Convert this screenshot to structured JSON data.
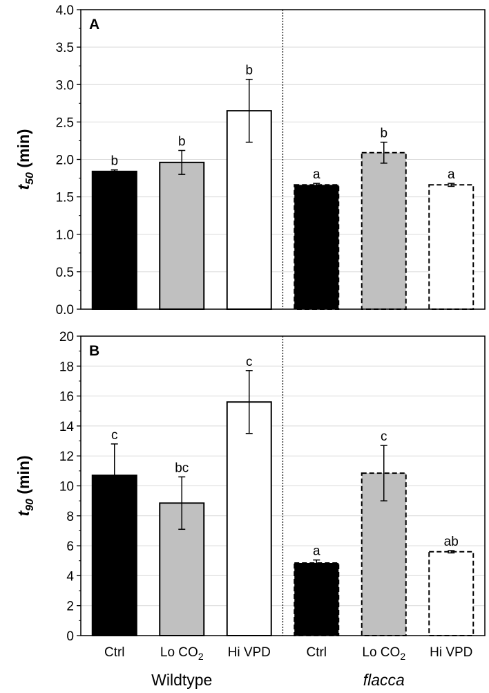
{
  "chart_data": [
    {
      "type": "bar",
      "panel_label": "A",
      "ylabel": {
        "var": "t",
        "sub": "50",
        "unit": " (min)"
      },
      "ylim": [
        0,
        4.0
      ],
      "ytick_labels": [
        "0.0",
        "0.5",
        "1.0",
        "1.5",
        "2.0",
        "2.5",
        "3.0",
        "3.5",
        "4.0"
      ],
      "grid": true,
      "series": [
        {
          "group": "Wildtype",
          "condition": "Ctrl",
          "value": 1.84,
          "error": 0.02,
          "sig": "b",
          "fill": "#000000",
          "dashed": false
        },
        {
          "group": "Wildtype",
          "condition": "Lo CO2",
          "value": 1.96,
          "error": 0.16,
          "sig": "b",
          "fill": "#c0c0c0",
          "dashed": false
        },
        {
          "group": "Wildtype",
          "condition": "Hi VPD",
          "value": 2.65,
          "error": 0.42,
          "sig": "b",
          "fill": "#ffffff",
          "dashed": false
        },
        {
          "group": "flacca",
          "condition": "Ctrl",
          "value": 1.66,
          "error": 0.02,
          "sig": "a",
          "fill": "#000000",
          "dashed": true
        },
        {
          "group": "flacca",
          "condition": "Lo CO2",
          "value": 2.09,
          "error": 0.14,
          "sig": "b",
          "fill": "#c0c0c0",
          "dashed": true
        },
        {
          "group": "flacca",
          "condition": "Hi VPD",
          "value": 1.66,
          "error": 0.02,
          "sig": "a",
          "fill": "#ffffff",
          "dashed": true
        }
      ]
    },
    {
      "type": "bar",
      "panel_label": "B",
      "ylabel": {
        "var": "t",
        "sub": "90",
        "unit": " (min)"
      },
      "ylim": [
        0,
        20
      ],
      "ytick_labels": [
        "0",
        "2",
        "4",
        "6",
        "8",
        "10",
        "12",
        "14",
        "16",
        "18",
        "20"
      ],
      "grid": true,
      "series": [
        {
          "group": "Wildtype",
          "condition": "Ctrl",
          "value": 10.7,
          "error": 2.1,
          "sig": "c",
          "fill": "#000000",
          "dashed": false
        },
        {
          "group": "Wildtype",
          "condition": "Lo CO2",
          "value": 8.85,
          "error": 1.75,
          "sig": "bc",
          "fill": "#c0c0c0",
          "dashed": false
        },
        {
          "group": "Wildtype",
          "condition": "Hi VPD",
          "value": 15.6,
          "error": 2.1,
          "sig": "c",
          "fill": "#ffffff",
          "dashed": false
        },
        {
          "group": "flacca",
          "condition": "Ctrl",
          "value": 4.85,
          "error": 0.2,
          "sig": "a",
          "fill": "#000000",
          "dashed": true
        },
        {
          "group": "flacca",
          "condition": "Lo CO2",
          "value": 10.85,
          "error": 1.85,
          "sig": "c",
          "fill": "#c0c0c0",
          "dashed": true
        },
        {
          "group": "flacca",
          "condition": "Hi VPD",
          "value": 5.6,
          "error": 0.08,
          "sig": "ab",
          "fill": "#ffffff",
          "dashed": true
        }
      ]
    }
  ],
  "x_categories": [
    {
      "base": "Ctrl",
      "sub": ""
    },
    {
      "base": "Lo CO",
      "sub": "2"
    },
    {
      "base": "Hi VPD",
      "sub": ""
    },
    {
      "base": "Ctrl",
      "sub": ""
    },
    {
      "base": "Lo CO",
      "sub": "2"
    },
    {
      "base": "Hi VPD",
      "sub": ""
    }
  ],
  "groups": [
    {
      "name": "Wildtype",
      "italic": false
    },
    {
      "name": "flacca",
      "italic": true
    }
  ],
  "colors": {
    "black_bar": "#000000",
    "grey_bar": "#c0c0c0",
    "white_bar": "#ffffff",
    "grid": "#d9d9d9",
    "axis": "#000000"
  }
}
